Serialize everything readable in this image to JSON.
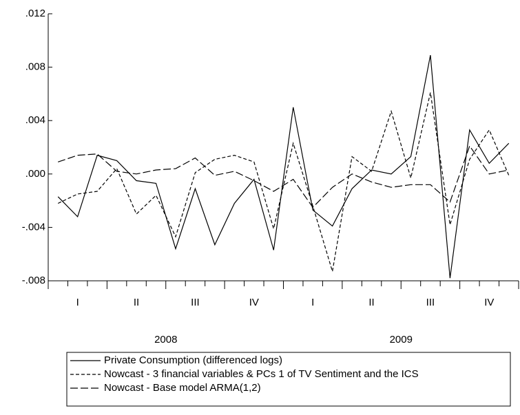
{
  "chart_data": {
    "type": "line",
    "categories": [
      null,
      null,
      null,
      null,
      null,
      null,
      null,
      null,
      null,
      null,
      null,
      null,
      null,
      null,
      null,
      null,
      null,
      null,
      null,
      null,
      null,
      null,
      null,
      null
    ],
    "quarter_labels": [
      "I",
      "II",
      "III",
      "IV",
      "I",
      "II",
      "III",
      "IV"
    ],
    "year_labels": [
      "2008",
      "2009"
    ],
    "ylim": [
      -0.008,
      0.012
    ],
    "yticks": [
      {
        "value": -0.008,
        "label": "-.008"
      },
      {
        "value": -0.004,
        "label": "-.004"
      },
      {
        "value": 0,
        "label": ".000"
      },
      {
        "value": 0.004,
        "label": ".004"
      },
      {
        "value": 0.008,
        "label": ".008"
      },
      {
        "value": 0.012,
        "label": ".012"
      }
    ],
    "series": [
      {
        "name": "Private Consumption (differenced logs)",
        "color": "#000000",
        "dash": "solid",
        "values": [
          -0.0017,
          -0.0032,
          0.0014,
          0.001,
          -0.0005,
          -0.0007,
          -0.0056,
          -0.0011,
          -0.0053,
          -0.0022,
          -0.0004,
          -0.0057,
          0.005,
          -0.0027,
          -0.0039,
          -0.0011,
          0.0003,
          0.0,
          0.0013,
          0.0089,
          -0.0078,
          0.0033,
          0.0008,
          0.0023
        ]
      },
      {
        "name": "Nowcast - 3 financial variables & PCs 1 of TV Sentiment and the ICS",
        "color": "#000000",
        "dash": "short",
        "values": [
          -0.0022,
          -0.0015,
          -0.0013,
          0.0004,
          -0.003,
          -0.0016,
          -0.0047,
          0.0001,
          0.0011,
          0.0014,
          0.0009,
          -0.0041,
          0.0023,
          -0.0024,
          -0.0073,
          0.0013,
          0.0002,
          0.0047,
          -0.0003,
          0.0061,
          -0.0038,
          0.0011,
          0.0033,
          -0.0001
        ]
      },
      {
        "name": "Nowcast - Base model ARMA(1,2)",
        "color": "#000000",
        "dash": "long",
        "values": [
          0.0009,
          0.0014,
          0.0015,
          0.0002,
          0.0,
          0.0003,
          0.0004,
          0.0012,
          -0.0001,
          0.0002,
          -0.0005,
          -0.0013,
          -0.0004,
          -0.0025,
          -0.001,
          0.0,
          -0.0006,
          -0.001,
          -0.0008,
          -0.0008,
          -0.0021,
          0.0021,
          0.0,
          0.0003
        ]
      }
    ]
  }
}
